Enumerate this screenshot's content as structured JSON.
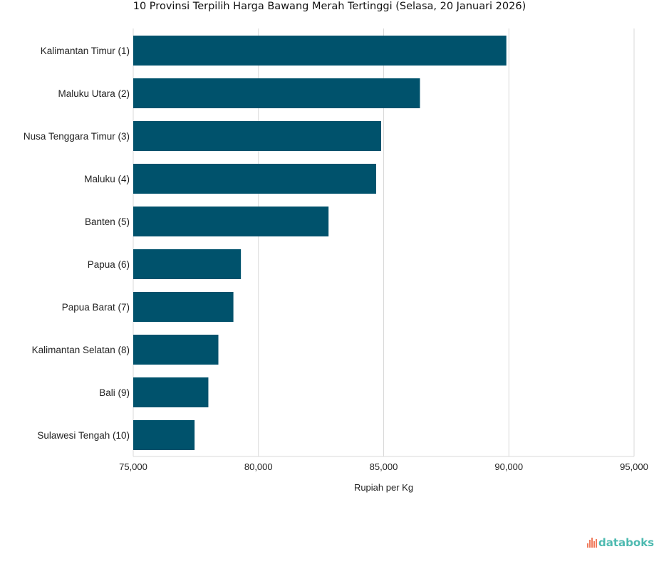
{
  "chart_data": {
    "type": "bar",
    "orientation": "horizontal",
    "title": "10 Provinsi Terpilih Harga Bawang Merah Tertinggi (Selasa, 20 Januari 2026)",
    "xlabel": "Rupiah per Kg",
    "ylabel": "",
    "categories": [
      "Kalimantan Timur (1)",
      "Maluku Utara (2)",
      "Nusa Tenggara Timur (3)",
      "Maluku (4)",
      "Banten (5)",
      "Papua (6)",
      "Papua Barat (7)",
      "Kalimantan Selatan (8)",
      "Bali (9)",
      "Sulawesi Tengah (10)"
    ],
    "values": [
      89900,
      86450,
      84900,
      84700,
      82800,
      79300,
      79000,
      78400,
      78000,
      77450
    ],
    "xlim": [
      75000,
      95000
    ],
    "xticks": [
      75000,
      80000,
      85000,
      90000,
      95000
    ],
    "xtick_labels": [
      "75,000",
      "80,000",
      "85,000",
      "90,000",
      "95,000"
    ],
    "grid": true,
    "bar_color": "#00526c"
  },
  "branding": {
    "logo": "databoks"
  }
}
